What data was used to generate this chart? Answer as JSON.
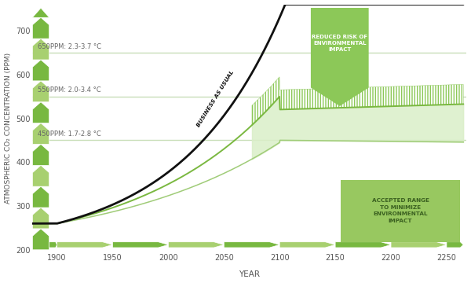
{
  "xlabel": "YEAR",
  "ylabel": "ATMOSPHERIC CO₂ CONCENTRATION (PPM)",
  "xlim": [
    1878,
    2268
  ],
  "ylim": [
    195,
    760
  ],
  "yticks": [
    200,
    300,
    400,
    500,
    600,
    700
  ],
  "xticks": [
    1900,
    1950,
    2000,
    2050,
    2100,
    2150,
    2200,
    2250
  ],
  "bg_color": "#ffffff",
  "grid_color": "#c8deb8",
  "arrow_green_light": "#a8d070",
  "arrow_green_dark": "#78b840",
  "hlines": [
    650,
    550,
    450
  ],
  "hlabels": [
    "650PPM: 2.3-3.7 °C",
    "550PPM: 2.0-3.4 °C",
    "450PPM: 1.7-2.8 °C"
  ],
  "bau_label": "BUSINESS AS USUAL",
  "reduced_risk_label": "REDUCED RISK OF\nENVIRONMENTAL\nIMPACT",
  "accepted_range_label": "ACCEPTED RANGE\nTO MINIMIZE\nENVIRONMENTAL\nIMPACT",
  "line_bau_color": "#111111",
  "line_upper_color": "#7ab840",
  "line_lower_color": "#a0cc78",
  "fill_light_color": "#daefc8",
  "fill_hatch_color": "#8cc858",
  "box_green": "#98c860",
  "box_text_color": "#3a6020",
  "reduced_risk_box_color": "#8cc858",
  "reduced_risk_text_color": "#ffffff"
}
